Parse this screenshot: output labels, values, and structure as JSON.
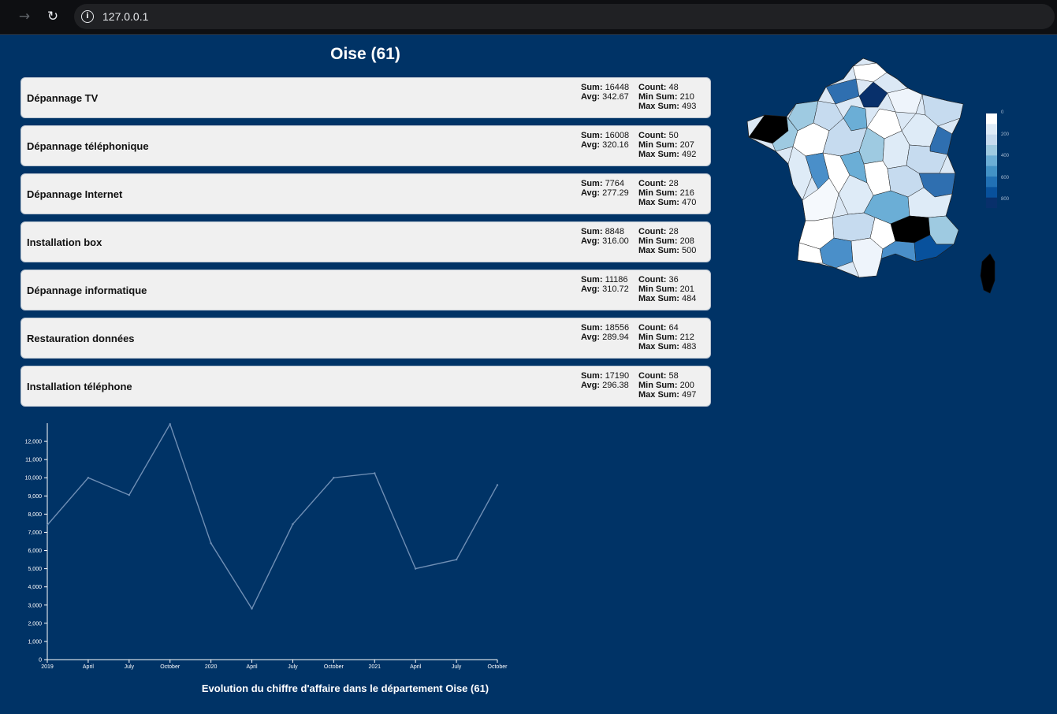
{
  "browser": {
    "url": "127.0.0.1"
  },
  "page": {
    "title": "Oise (61)"
  },
  "services": [
    {
      "name": "Dépannage TV",
      "sum": "16448",
      "avg": "342.67",
      "count": "48",
      "min_sum": "210",
      "max_sum": "493"
    },
    {
      "name": "Dépannage téléphonique",
      "sum": "16008",
      "avg": "320.16",
      "count": "50",
      "min_sum": "207",
      "max_sum": "492"
    },
    {
      "name": "Dépannage Internet",
      "sum": "7764",
      "avg": "277.29",
      "count": "28",
      "min_sum": "216",
      "max_sum": "470"
    },
    {
      "name": "Installation box",
      "sum": "8848",
      "avg": "316.00",
      "count": "28",
      "min_sum": "208",
      "max_sum": "500"
    },
    {
      "name": "Dépannage informatique",
      "sum": "11186",
      "avg": "310.72",
      "count": "36",
      "min_sum": "201",
      "max_sum": "484"
    },
    {
      "name": "Restauration données",
      "sum": "18556",
      "avg": "289.94",
      "count": "64",
      "min_sum": "212",
      "max_sum": "483"
    },
    {
      "name": "Installation téléphone",
      "sum": "17190",
      "avg": "296.38",
      "count": "58",
      "min_sum": "200",
      "max_sum": "497"
    }
  ],
  "labels": {
    "sum": "Sum:",
    "avg": "Avg:",
    "count": "Count:",
    "min_sum": "Min Sum:",
    "max_sum": "Max Sum:"
  },
  "map": {
    "legend_ticks": [
      "0",
      "200",
      "400",
      "600",
      "800"
    ],
    "legend_colors": [
      "#ffffff",
      "#deebf7",
      "#c6dbef",
      "#9ecae1",
      "#6baed6",
      "#4292c6",
      "#2171b5",
      "#08519c",
      "#08306b"
    ]
  },
  "chart_data": {
    "type": "line",
    "x": [
      "2019",
      "April",
      "July",
      "October",
      "2020",
      "April",
      "July",
      "October",
      "2021",
      "April",
      "July",
      "October"
    ],
    "values": [
      7400,
      10000,
      9050,
      12950,
      6400,
      2800,
      7450,
      10000,
      10250,
      5000,
      5500,
      9600
    ],
    "ylim": [
      0,
      13000
    ],
    "yticks": [
      "0",
      "1,000",
      "2,000",
      "3,000",
      "4,000",
      "5,000",
      "6,000",
      "7,000",
      "8,000",
      "9,000",
      "10,000",
      "11,000",
      "12,000"
    ],
    "xlabel": "",
    "ylabel": "",
    "line_color": "#6f8fb5",
    "caption": "Evolution du chiffre d'affaire dans le département Oise (61)"
  }
}
